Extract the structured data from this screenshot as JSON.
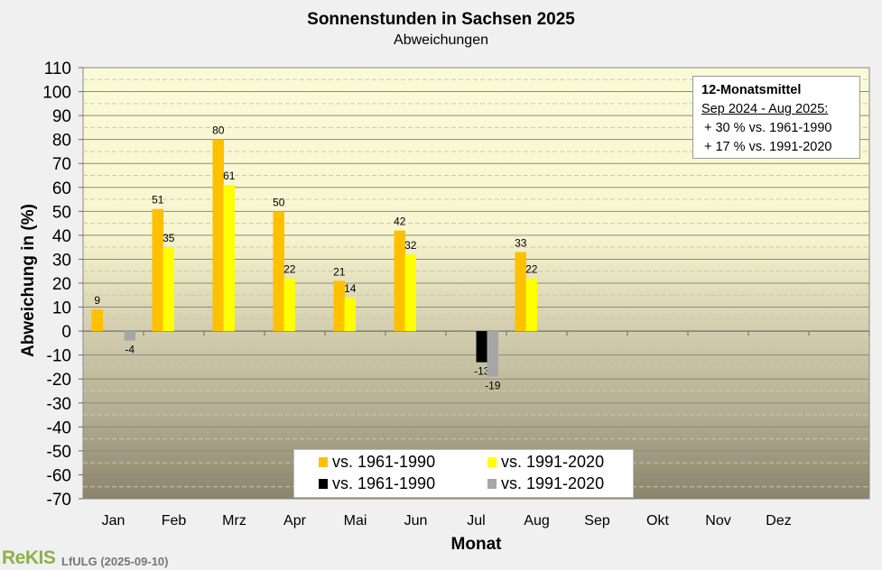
{
  "chart_data": {
    "type": "bar",
    "title": "Sonnenstunden in Sachsen 2025",
    "subtitle": "Abweichungen",
    "xlabel": "Monat",
    "ylabel": "Abweichung in (%)",
    "ylim": [
      -70,
      110
    ],
    "yticks": [
      "110",
      "100",
      "90",
      "80",
      "70",
      "60",
      "50",
      "40",
      "30",
      "20",
      "10",
      "0",
      "-10",
      "-20",
      "-30",
      "-40",
      "-50",
      "-60",
      "-70"
    ],
    "categories": [
      "Jan",
      "Feb",
      "Mrz",
      "Apr",
      "Mai",
      "Jun",
      "Jul",
      "Aug",
      "Sep",
      "Okt",
      "Nov",
      "Dez"
    ],
    "series": [
      {
        "name": "vs. 1961-1990",
        "color": "#ffc000",
        "values": [
          9,
          51,
          80,
          50,
          21,
          42,
          null,
          33,
          null,
          null,
          null,
          null
        ]
      },
      {
        "name": "vs. 1991-2020",
        "color": "#ffff00",
        "values": [
          null,
          35,
          61,
          22,
          14,
          32,
          null,
          22,
          null,
          null,
          null,
          null
        ]
      },
      {
        "name": "vs. 1961-1990",
        "color": "#000000",
        "values": [
          null,
          null,
          null,
          null,
          null,
          null,
          -13,
          null,
          null,
          null,
          null,
          null
        ]
      },
      {
        "name": "vs. 1991-2020",
        "color": "#a6a6a6",
        "values": [
          -4,
          null,
          null,
          null,
          null,
          null,
          -19,
          null,
          null,
          null,
          null,
          null
        ]
      }
    ],
    "grid": true,
    "legend_position": "bottom-center"
  },
  "info_box": {
    "title": "12-Monatsmittel",
    "period": "Sep 2024 - Aug 2025:",
    "line1": "+ 30 % vs. 1961-1990",
    "line2": "+ 17 % vs. 1991-2020"
  },
  "footer": {
    "logo": "ReKIS",
    "credit": "LfULG (2025-09-10)"
  }
}
